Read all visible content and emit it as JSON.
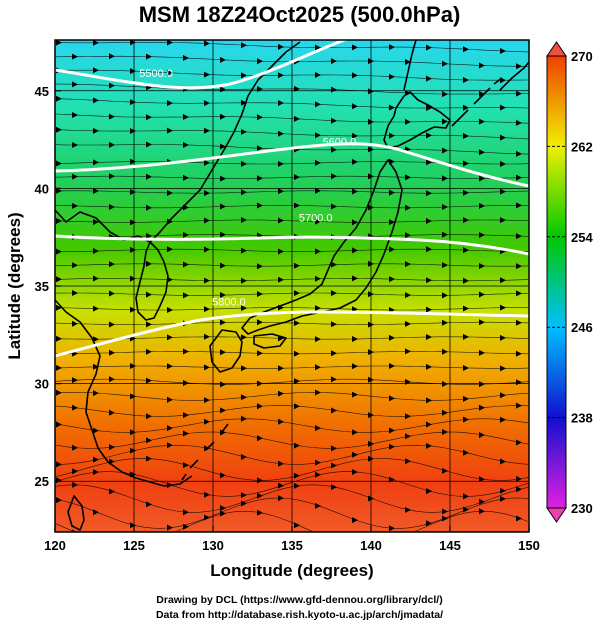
{
  "title": "MSM 18Z24Oct2025 (500.0hPa)",
  "footer": {
    "line1": "Drawing by DCL (https://www.gfd-dennou.org/library/dcl/)",
    "line2": "Data from http://database.rish.kyoto-u.ac.jp/arch/jmadata/"
  },
  "chart_data": {
    "type": "map",
    "xlabel": "Longitude (degrees)",
    "ylabel": "Latitude  (degrees)",
    "xlim": [
      120,
      150
    ],
    "ylim": [
      22.4,
      47.6
    ],
    "xticks": [
      120,
      125,
      130,
      135,
      140,
      145,
      150
    ],
    "yticks": [
      25,
      30,
      35,
      40,
      45
    ],
    "grid": true,
    "colorbar": {
      "min": 230,
      "max": 270,
      "ticks": [
        230,
        238,
        246,
        254,
        262,
        270
      ],
      "unit": "",
      "colors": [
        "#e020e0",
        "#1010d0",
        "#00c0ff",
        "#00c800",
        "#f0f000",
        "#f04000"
      ]
    },
    "contours": [
      {
        "label": "5500.0",
        "lat_start": 46.4,
        "lat_end": 48.0
      },
      {
        "label": "5600.0",
        "lat_start": 41.6,
        "lat_end": 42.0
      },
      {
        "label": "5700.0",
        "lat_start": 38.2,
        "lat_end": 37.5
      },
      {
        "label": "5800.0",
        "lat_start": 32.2,
        "lat_end": 34.4
      }
    ],
    "contour_labels": [
      {
        "text": "5500.0",
        "lon": 126.4,
        "lat": 45.9
      },
      {
        "text": "5600.0",
        "lon": 138.0,
        "lat": 42.4
      },
      {
        "text": "5700.0",
        "lon": 136.5,
        "lat": 38.5
      },
      {
        "text": "5800.0",
        "lon": 131.0,
        "lat": 34.2
      }
    ],
    "temperature_field": [
      {
        "lat": 47.6,
        "value": 250
      },
      {
        "lat": 45.0,
        "value": 251
      },
      {
        "lat": 42.0,
        "value": 254
      },
      {
        "lat": 38.0,
        "value": 256
      },
      {
        "lat": 34.0,
        "value": 259
      },
      {
        "lat": 31.0,
        "value": 263
      },
      {
        "lat": 27.0,
        "value": 267
      },
      {
        "lat": 22.4,
        "value": 269
      }
    ]
  }
}
